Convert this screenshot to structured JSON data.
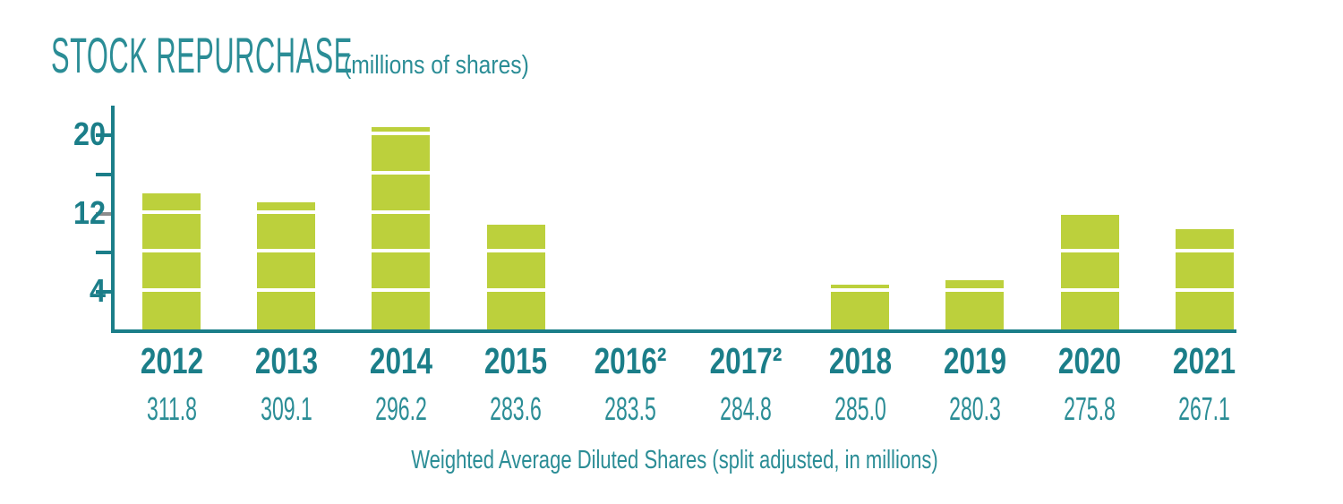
{
  "chart_data": {
    "type": "bar",
    "title": "STOCK REPURCHASE",
    "subtitle": "(millions of shares)",
    "categories": [
      "2012",
      "2013",
      "2014",
      "2015",
      "2016²",
      "2017²",
      "2018",
      "2019",
      "2020",
      "2021"
    ],
    "values": [
      13.9,
      13.0,
      20.7,
      10.7,
      0,
      0,
      4.6,
      5.0,
      11.7,
      10.2
    ],
    "secondary_row": {
      "label": "Weighted Average Diluted Shares (split adjusted, in millions)",
      "values": [
        "311.8",
        "309.1",
        "296.2",
        "283.6",
        "283.5",
        "284.8",
        "285.0",
        "280.3",
        "275.8",
        "267.1"
      ]
    },
    "ylim": [
      0,
      22
    ],
    "yticks": [
      4,
      8,
      12,
      16,
      20
    ],
    "ytick_labels_shown": [
      4,
      12,
      20
    ],
    "gray_tick_value": 12,
    "bar_segment_separator_every": 4,
    "grid": false,
    "legend": false,
    "bar_color": "#bcd03c",
    "axis_color": "#1b7e89",
    "label_color": "#1b7e89",
    "light_teal_color": "#2b8d96",
    "gray_tick_color": "#8c8c8c"
  }
}
